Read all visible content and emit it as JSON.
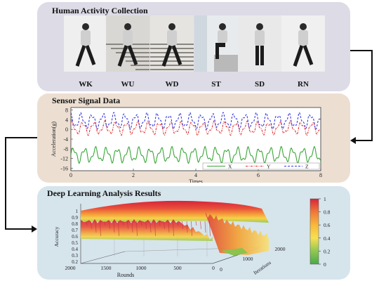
{
  "panels": {
    "collection": {
      "title": "Human Activity Collection"
    },
    "sensor": {
      "title": "Sensor Signal Data"
    },
    "analysis": {
      "title": "Deep Learning Analysis Results"
    }
  },
  "activities": [
    {
      "code": "WK"
    },
    {
      "code": "WU"
    },
    {
      "code": "WD"
    },
    {
      "code": "ST"
    },
    {
      "code": "SD"
    },
    {
      "code": "RN"
    }
  ],
  "colors": {
    "panel1_bg": "#dcdbe6",
    "panel2_bg": "#ecdfd2",
    "panel3_bg": "#d6e4ec",
    "x_series": "#3aa63a",
    "y_series": "#e03030",
    "z_series": "#3a3ae0"
  },
  "chart_data": [
    {
      "type": "line",
      "xlabel": "Times",
      "ylabel": "Acceleration(g)",
      "xlim": [
        0,
        8
      ],
      "ylim": [
        -17,
        9
      ],
      "x_ticks": [
        "0",
        "2",
        "4",
        "6",
        "8"
      ],
      "y_ticks": [
        "8",
        "4",
        "0",
        "-4",
        "-8",
        "-12",
        "-16"
      ],
      "legend_position": "bottom-right",
      "series": [
        {
          "name": "X",
          "style": "solid",
          "color": "#3aa63a",
          "mean": -10.5,
          "amplitude": 3.5,
          "period": 0.35
        },
        {
          "name": "Y",
          "style": "dash-dot",
          "color": "#e03030",
          "mean": 0.5,
          "amplitude": 3.0,
          "period": 0.35
        },
        {
          "name": "Z",
          "style": "dashed",
          "color": "#3a3ae0",
          "mean": 3.5,
          "amplitude": 3.5,
          "period": 0.35
        }
      ]
    },
    {
      "type": "surface",
      "zlabel": "Accuracy",
      "xlabel": "Rounds",
      "ylabel": "Iterations",
      "x_ticks": [
        "2000",
        "1500",
        "1000",
        "500",
        "0"
      ],
      "y_ticks": [
        "0",
        "1000",
        "2000"
      ],
      "z_ticks": [
        "1",
        "0.9",
        "0.8",
        "0.7",
        "0.6",
        "0.5",
        "0.4",
        "0.3",
        "0.2"
      ],
      "colorbar": {
        "ticks": [
          "1",
          "0.8",
          "0.6",
          "0.4",
          "0.2",
          "0"
        ],
        "colors": [
          "#d8243a",
          "#f07838",
          "#f8b83a",
          "#f8e050",
          "#90c850",
          "#4aa84a"
        ]
      }
    }
  ]
}
